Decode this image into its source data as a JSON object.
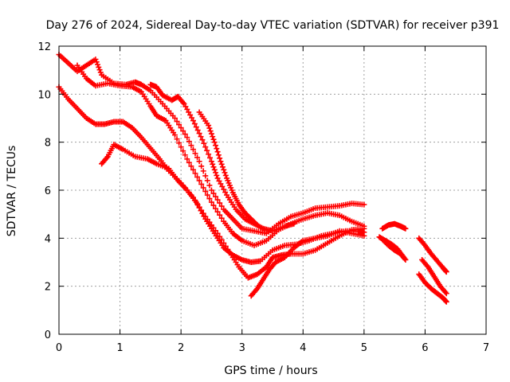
{
  "chart_data": {
    "type": "scatter",
    "title": "Day 276 of 2024, Sidereal Day-to-day VTEC variation (SDTVAR) for receiver p391",
    "xlabel": "GPS time / hours",
    "ylabel": "SDTVAR / TECUs",
    "xlim": [
      0,
      7
    ],
    "ylim": [
      0,
      12
    ],
    "xticks": [
      "0",
      "1",
      "2",
      "3",
      "4",
      "5",
      "6",
      "7"
    ],
    "yticks": [
      "0",
      "2",
      "4",
      "6",
      "8",
      "10",
      "12"
    ],
    "grid": true,
    "marker": "+",
    "color": "#ff0000",
    "series": [
      {
        "name": "trace-1",
        "points": [
          [
            0.0,
            11.65
          ],
          [
            0.15,
            11.3
          ],
          [
            0.3,
            10.95
          ],
          [
            0.45,
            11.2
          ],
          [
            0.6,
            11.45
          ],
          [
            0.7,
            10.8
          ],
          [
            0.9,
            10.45
          ],
          [
            1.1,
            10.4
          ],
          [
            1.25,
            10.5
          ],
          [
            1.35,
            10.4
          ],
          [
            1.5,
            10.15
          ],
          [
            1.7,
            9.6
          ],
          [
            1.9,
            9.0
          ],
          [
            2.1,
            8.2
          ],
          [
            2.3,
            7.2
          ],
          [
            2.5,
            6.0
          ],
          [
            2.7,
            5.2
          ],
          [
            2.85,
            4.8
          ],
          [
            3.0,
            4.4
          ],
          [
            3.2,
            4.3
          ],
          [
            3.4,
            4.2
          ],
          [
            3.6,
            4.6
          ],
          [
            3.8,
            4.9
          ],
          [
            4.0,
            5.05
          ],
          [
            4.2,
            5.25
          ],
          [
            4.4,
            5.3
          ],
          [
            4.6,
            5.35
          ],
          [
            4.8,
            5.45
          ],
          [
            5.0,
            5.4
          ]
        ]
      },
      {
        "name": "trace-2",
        "points": [
          [
            0.3,
            11.2
          ],
          [
            0.45,
            10.65
          ],
          [
            0.6,
            10.35
          ],
          [
            0.8,
            10.45
          ],
          [
            1.0,
            10.35
          ],
          [
            1.2,
            10.3
          ],
          [
            1.35,
            10.1
          ],
          [
            1.5,
            9.5
          ],
          [
            1.6,
            9.1
          ],
          [
            1.75,
            8.9
          ],
          [
            1.9,
            8.3
          ],
          [
            2.1,
            7.3
          ],
          [
            2.3,
            6.4
          ],
          [
            2.5,
            5.5
          ],
          [
            2.7,
            4.7
          ],
          [
            2.85,
            4.2
          ],
          [
            3.0,
            3.9
          ],
          [
            3.2,
            3.7
          ],
          [
            3.4,
            3.9
          ],
          [
            3.6,
            4.35
          ],
          [
            3.8,
            4.6
          ],
          [
            4.0,
            4.8
          ],
          [
            4.2,
            4.95
          ],
          [
            4.4,
            5.05
          ],
          [
            4.6,
            4.95
          ],
          [
            4.8,
            4.7
          ],
          [
            5.0,
            4.5
          ]
        ]
      },
      {
        "name": "trace-3",
        "points": [
          [
            0.0,
            10.3
          ],
          [
            0.15,
            9.8
          ],
          [
            0.3,
            9.4
          ],
          [
            0.45,
            9.0
          ],
          [
            0.6,
            8.75
          ],
          [
            0.75,
            8.75
          ],
          [
            0.9,
            8.85
          ],
          [
            1.05,
            8.85
          ],
          [
            1.2,
            8.6
          ],
          [
            1.35,
            8.2
          ],
          [
            1.5,
            7.75
          ],
          [
            1.65,
            7.3
          ],
          [
            1.8,
            6.8
          ],
          [
            2.0,
            6.3
          ],
          [
            2.2,
            5.7
          ],
          [
            2.4,
            4.9
          ],
          [
            2.6,
            4.2
          ],
          [
            2.8,
            3.4
          ],
          [
            2.95,
            2.8
          ],
          [
            3.1,
            2.35
          ],
          [
            3.25,
            2.5
          ],
          [
            3.4,
            2.8
          ],
          [
            3.5,
            3.2
          ],
          [
            3.65,
            3.3
          ],
          [
            3.8,
            3.35
          ],
          [
            4.0,
            3.35
          ],
          [
            4.2,
            3.5
          ],
          [
            4.4,
            3.8
          ],
          [
            4.6,
            4.1
          ],
          [
            4.8,
            4.35
          ],
          [
            5.0,
            4.4
          ]
        ]
      },
      {
        "name": "trace-4",
        "points": [
          [
            0.7,
            7.1
          ],
          [
            0.8,
            7.4
          ],
          [
            0.9,
            7.9
          ],
          [
            1.05,
            7.7
          ],
          [
            1.25,
            7.4
          ],
          [
            1.45,
            7.3
          ],
          [
            1.6,
            7.1
          ],
          [
            1.8,
            6.9
          ],
          [
            1.95,
            6.4
          ],
          [
            2.1,
            6.0
          ],
          [
            2.25,
            5.5
          ],
          [
            2.4,
            4.8
          ],
          [
            2.55,
            4.2
          ],
          [
            2.7,
            3.6
          ],
          [
            2.85,
            3.3
          ],
          [
            3.0,
            3.1
          ],
          [
            3.15,
            3.0
          ],
          [
            3.3,
            3.05
          ],
          [
            3.5,
            3.5
          ],
          [
            3.7,
            3.7
          ],
          [
            3.9,
            3.75
          ],
          [
            4.1,
            3.9
          ],
          [
            4.3,
            4.1
          ],
          [
            4.5,
            4.2
          ],
          [
            4.7,
            4.3
          ],
          [
            4.9,
            4.3
          ],
          [
            5.0,
            4.25
          ]
        ]
      },
      {
        "name": "trace-5",
        "points": [
          [
            1.5,
            10.4
          ],
          [
            1.6,
            10.3
          ],
          [
            1.7,
            9.95
          ],
          [
            1.85,
            9.75
          ],
          [
            1.95,
            9.9
          ],
          [
            2.05,
            9.6
          ],
          [
            2.2,
            8.9
          ],
          [
            2.35,
            8.1
          ],
          [
            2.5,
            7.2
          ],
          [
            2.6,
            6.5
          ],
          [
            2.75,
            5.8
          ],
          [
            2.9,
            5.2
          ],
          [
            3.05,
            4.8
          ],
          [
            3.2,
            4.6
          ],
          [
            3.35,
            4.4
          ],
          [
            3.5,
            4.3
          ],
          [
            3.7,
            4.5
          ],
          [
            3.85,
            4.6
          ]
        ]
      },
      {
        "name": "trace-6",
        "points": [
          [
            2.3,
            9.25
          ],
          [
            2.45,
            8.7
          ],
          [
            2.55,
            8.0
          ],
          [
            2.65,
            7.2
          ],
          [
            2.75,
            6.5
          ],
          [
            2.85,
            5.9
          ],
          [
            2.95,
            5.4
          ],
          [
            3.05,
            5.05
          ],
          [
            3.15,
            4.8
          ],
          [
            3.25,
            4.55
          ]
        ]
      },
      {
        "name": "trace-7",
        "points": [
          [
            3.15,
            1.6
          ],
          [
            3.25,
            1.9
          ],
          [
            3.35,
            2.3
          ],
          [
            3.45,
            2.7
          ],
          [
            3.55,
            3.0
          ],
          [
            3.7,
            3.2
          ],
          [
            3.85,
            3.6
          ],
          [
            4.0,
            3.9
          ],
          [
            4.2,
            4.0
          ],
          [
            4.4,
            4.1
          ],
          [
            4.6,
            4.3
          ],
          [
            4.8,
            4.2
          ],
          [
            5.0,
            4.1
          ]
        ]
      },
      {
        "name": "trace-8",
        "points": [
          [
            5.3,
            4.4
          ],
          [
            5.4,
            4.55
          ],
          [
            5.5,
            4.6
          ],
          [
            5.6,
            4.5
          ],
          [
            5.68,
            4.4
          ]
        ]
      },
      {
        "name": "trace-9",
        "points": [
          [
            5.25,
            4.05
          ],
          [
            5.35,
            3.9
          ],
          [
            5.45,
            3.75
          ],
          [
            5.55,
            3.55
          ],
          [
            5.65,
            3.2
          ]
        ]
      },
      {
        "name": "trace-10",
        "points": [
          [
            5.3,
            3.95
          ],
          [
            5.4,
            3.7
          ],
          [
            5.5,
            3.5
          ],
          [
            5.6,
            3.35
          ],
          [
            5.68,
            3.1
          ]
        ]
      },
      {
        "name": "trace-11",
        "points": [
          [
            5.9,
            4.0
          ],
          [
            6.0,
            3.7
          ],
          [
            6.1,
            3.35
          ],
          [
            6.2,
            3.05
          ],
          [
            6.3,
            2.75
          ],
          [
            6.35,
            2.6
          ]
        ]
      },
      {
        "name": "trace-12",
        "points": [
          [
            5.95,
            3.1
          ],
          [
            6.05,
            2.8
          ],
          [
            6.15,
            2.4
          ],
          [
            6.25,
            2.0
          ],
          [
            6.35,
            1.7
          ]
        ]
      },
      {
        "name": "trace-13",
        "points": [
          [
            5.9,
            2.5
          ],
          [
            6.0,
            2.15
          ],
          [
            6.1,
            1.9
          ],
          [
            6.2,
            1.7
          ],
          [
            6.3,
            1.5
          ],
          [
            6.35,
            1.35
          ]
        ]
      }
    ]
  }
}
